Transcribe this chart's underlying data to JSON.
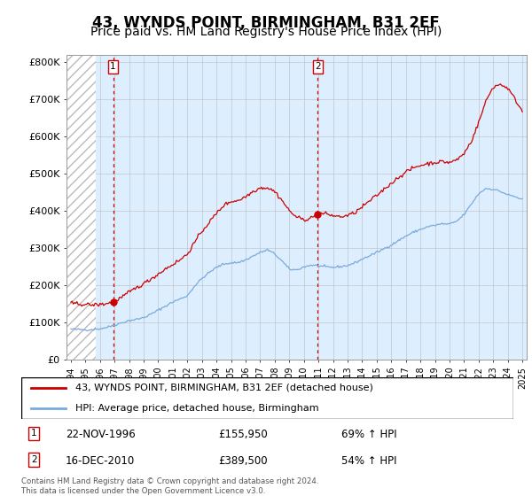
{
  "title": "43, WYNDS POINT, BIRMINGHAM, B31 2EF",
  "subtitle": "Price paid vs. HM Land Registry's House Price Index (HPI)",
  "title_fontsize": 12,
  "subtitle_fontsize": 10,
  "background_color": "#ffffff",
  "plot_bg_color": "#ddeeff",
  "ylim": [
    0,
    820000
  ],
  "yticks": [
    0,
    100000,
    200000,
    300000,
    400000,
    500000,
    600000,
    700000,
    800000
  ],
  "ytick_labels": [
    "£0",
    "£100K",
    "£200K",
    "£300K",
    "£400K",
    "£500K",
    "£600K",
    "£700K",
    "£800K"
  ],
  "xlim_start": 1993.7,
  "xlim_end": 2025.3,
  "hatch_end": 1995.7,
  "sale1_x": 1996.9,
  "sale1_y": 155950,
  "sale2_x": 2010.96,
  "sale2_y": 389500,
  "sale1_label": "1",
  "sale2_label": "2",
  "sale1_date": "22-NOV-1996",
  "sale1_price": "£155,950",
  "sale1_hpi": "69% ↑ HPI",
  "sale2_date": "16-DEC-2010",
  "sale2_price": "£389,500",
  "sale2_hpi": "54% ↑ HPI",
  "legend_line1": "43, WYNDS POINT, BIRMINGHAM, B31 2EF (detached house)",
  "legend_line2": "HPI: Average price, detached house, Birmingham",
  "footer": "Contains HM Land Registry data © Crown copyright and database right 2024.\nThis data is licensed under the Open Government Licence v3.0.",
  "red_color": "#cc0000",
  "blue_color": "#7aaadd",
  "grid_color": "#bbbbbb",
  "xtick_years": [
    1994,
    1995,
    1996,
    1997,
    1998,
    1999,
    2000,
    2001,
    2002,
    2003,
    2004,
    2005,
    2006,
    2007,
    2008,
    2009,
    2010,
    2011,
    2012,
    2013,
    2014,
    2015,
    2016,
    2017,
    2018,
    2019,
    2020,
    2021,
    2022,
    2023,
    2024,
    2025
  ],
  "xtick_labels": [
    "1994",
    "1995",
    "1996",
    "1997",
    "1998",
    "1999",
    "2000",
    "2001",
    "2002",
    "2003",
    "2004",
    "2005",
    "2006",
    "2007",
    "2008",
    "2009",
    "2010",
    "2011",
    "2012",
    "2013",
    "2014",
    "2015",
    "2016",
    "2017",
    "2018",
    "2019",
    "2020",
    "2021",
    "2022",
    "2023",
    "2024",
    "2025"
  ]
}
